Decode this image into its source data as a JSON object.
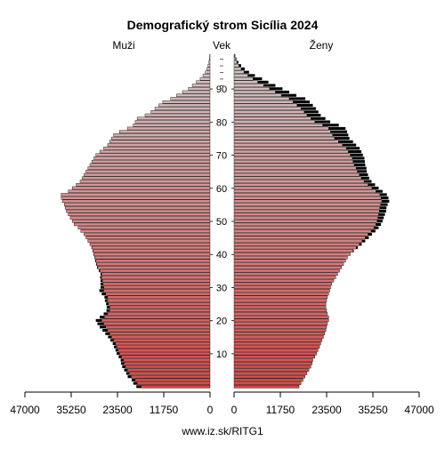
{
  "chart_data": {
    "type": "bar",
    "title": "Demografický strom Sicília 2024",
    "left_label": "Muži",
    "center_label": "Vek",
    "right_label": "Ženy",
    "footer": "www.iz.sk/RITG1",
    "xlim": [
      0,
      47000
    ],
    "x_ticks_left": [
      "47000",
      "35250",
      "23500",
      "11750",
      "0"
    ],
    "x_ticks_right": [
      "0",
      "11750",
      "23500",
      "35250",
      "47000"
    ],
    "age_ticks": [
      "10",
      "20",
      "30",
      "40",
      "50",
      "60",
      "70",
      "80",
      "90"
    ],
    "ages": [
      0,
      1,
      2,
      3,
      4,
      5,
      6,
      7,
      8,
      9,
      10,
      11,
      12,
      13,
      14,
      15,
      16,
      17,
      18,
      19,
      20,
      21,
      22,
      23,
      24,
      25,
      26,
      27,
      28,
      29,
      30,
      31,
      32,
      33,
      34,
      35,
      36,
      37,
      38,
      39,
      40,
      41,
      42,
      43,
      44,
      45,
      46,
      47,
      48,
      49,
      50,
      51,
      52,
      53,
      54,
      55,
      56,
      57,
      58,
      59,
      60,
      61,
      62,
      63,
      64,
      65,
      66,
      67,
      68,
      69,
      70,
      71,
      72,
      73,
      74,
      75,
      76,
      77,
      78,
      79,
      80,
      81,
      82,
      83,
      84,
      85,
      86,
      87,
      88,
      89,
      90,
      91,
      92,
      93,
      94,
      95,
      96,
      97,
      98,
      99,
      100
    ],
    "series": [
      {
        "name": "Muži",
        "values": [
          17500,
          18500,
          19000,
          20000,
          20500,
          21000,
          21500,
          21800,
          22000,
          22500,
          23000,
          23300,
          23700,
          24000,
          24500,
          25000,
          25500,
          26000,
          26500,
          27000,
          27500,
          26800,
          26000,
          25500,
          25500,
          25800,
          26000,
          26000,
          26500,
          27000,
          27000,
          27200,
          27300,
          27500,
          27500,
          28000,
          28500,
          28800,
          29000,
          29300,
          29500,
          29700,
          30000,
          30500,
          31000,
          31500,
          32000,
          32800,
          33500,
          34500,
          35000,
          35500,
          36000,
          36500,
          36800,
          37000,
          37500,
          37800,
          37800,
          36000,
          35000,
          34000,
          33000,
          32500,
          32000,
          31500,
          31000,
          30500,
          30000,
          29500,
          29000,
          28000,
          27000,
          26000,
          25500,
          25000,
          24500,
          23000,
          21000,
          19500,
          19000,
          18500,
          16500,
          15000,
          14000,
          13000,
          12000,
          10000,
          8500,
          7000,
          5500,
          4500,
          3500,
          2500,
          1800,
          1200,
          800,
          500,
          300,
          150,
          80
        ],
        "excess": [
          1200,
          1000,
          900,
          900,
          800,
          800,
          800,
          800,
          700,
          700,
          700,
          700,
          700,
          700,
          800,
          900,
          1100,
          1300,
          1500,
          1600,
          1500,
          1200,
          1000,
          800,
          700,
          600,
          700,
          800,
          1000,
          1100,
          800,
          600,
          500,
          400,
          300,
          250,
          200,
          150,
          150,
          100,
          100,
          100,
          100,
          0,
          0,
          0,
          0,
          0,
          0,
          0,
          0,
          0,
          0,
          0,
          0,
          0,
          0,
          0,
          0,
          0,
          0,
          0,
          0,
          0,
          0,
          0,
          0,
          0,
          0,
          0,
          0,
          0,
          0,
          0,
          0,
          0,
          0,
          0,
          0,
          0,
          0,
          0,
          0,
          0,
          0,
          0,
          0,
          0,
          0,
          0,
          0,
          0,
          0,
          0,
          0,
          0,
          0,
          0,
          0,
          0,
          0
        ]
      },
      {
        "name": "Ženy",
        "values": [
          16500,
          17000,
          17500,
          18000,
          18500,
          19000,
          19500,
          19800,
          20000,
          20500,
          21000,
          21300,
          21700,
          22000,
          22300,
          22700,
          23000,
          23300,
          23500,
          23700,
          24000,
          24000,
          23700,
          23500,
          23300,
          23300,
          23500,
          23700,
          24000,
          24300,
          24500,
          24800,
          25300,
          25800,
          26300,
          26800,
          27300,
          27800,
          28300,
          28800,
          29500,
          30200,
          31000,
          31800,
          32500,
          33300,
          34000,
          34800,
          35500,
          36000,
          36300,
          36500,
          36700,
          36900,
          37000,
          37200,
          37500,
          37300,
          37000,
          36000,
          35000,
          34000,
          33000,
          32300,
          31800,
          31300,
          31000,
          30500,
          30200,
          30000,
          29500,
          29000,
          28500,
          27500,
          26500,
          25500,
          25000,
          24500,
          24000,
          22500,
          20500,
          19500,
          18500,
          17800,
          17000,
          16000,
          15000,
          14000,
          12000,
          10500,
          9000,
          7500,
          6000,
          4800,
          3500,
          2500,
          1800,
          1200,
          700,
          400,
          200
        ],
        "excess": [
          0,
          0,
          0,
          0,
          0,
          0,
          0,
          0,
          0,
          0,
          0,
          0,
          0,
          0,
          0,
          0,
          0,
          0,
          0,
          0,
          0,
          0,
          0,
          0,
          0,
          0,
          0,
          0,
          0,
          0,
          0,
          0,
          0,
          0,
          0,
          0,
          0,
          0,
          0,
          0,
          0,
          200,
          400,
          600,
          800,
          900,
          1000,
          1100,
          1200,
          1300,
          1400,
          1500,
          1600,
          1700,
          1700,
          1800,
          1900,
          1900,
          1800,
          1700,
          1700,
          1800,
          1900,
          2000,
          2200,
          2400,
          2600,
          2800,
          3000,
          3100,
          3200,
          3300,
          3400,
          3500,
          3700,
          3800,
          4000,
          4200,
          4300,
          4100,
          3900,
          3700,
          3500,
          3600,
          3800,
          4000,
          4200,
          4100,
          3800,
          3500,
          3300,
          3000,
          2700,
          2300,
          1800,
          1300,
          900,
          600,
          400,
          200,
          100
        ]
      }
    ],
    "colors": {
      "young": "#d94848",
      "old": "#d0c8c8",
      "excess": "#000000",
      "outline": "#000000"
    },
    "grid": false
  }
}
